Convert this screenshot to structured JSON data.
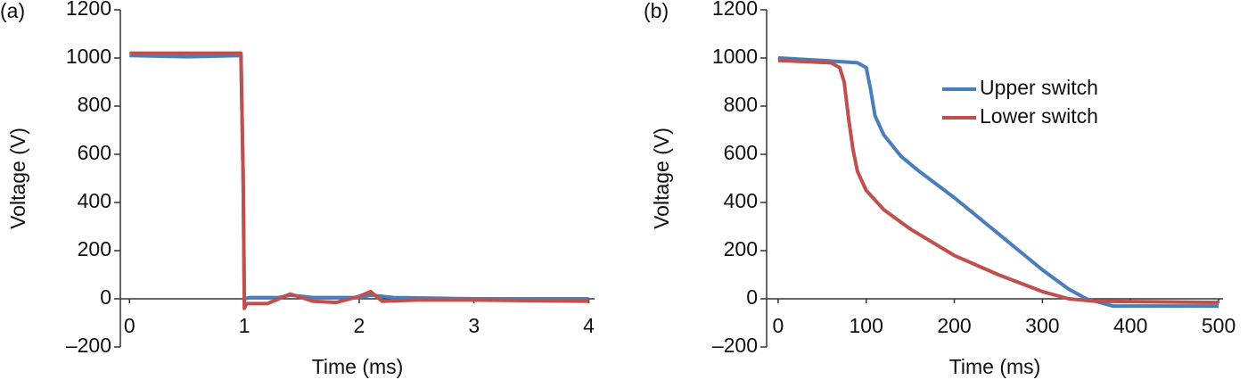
{
  "chart_data": [
    {
      "type": "line",
      "panel_label": "(a)",
      "xlabel": "Time (ms)",
      "ylabel": "Voltage (V)",
      "xlim": [
        -0.08,
        4.05
      ],
      "xticks": [
        0,
        1,
        2,
        3,
        4
      ],
      "ylim": [
        -200,
        1200
      ],
      "yticks": [
        {
          "value": -200,
          "label": "–200"
        },
        0,
        200,
        400,
        600,
        800,
        1000,
        1200
      ],
      "series": [
        {
          "color": "#4a7ebb",
          "x": [
            0,
            0.5,
            0.97,
            0.99,
            1.0,
            1.05,
            1.3,
            1.4,
            1.6,
            2.0,
            2.1,
            2.3,
            3,
            4
          ],
          "values": [
            1010,
            1005,
            1010,
            500,
            0,
            5,
            5,
            15,
            5,
            5,
            15,
            5,
            0,
            0
          ]
        },
        {
          "color": "#c0504d",
          "x": [
            0,
            0.5,
            0.97,
            0.99,
            1.0,
            1.02,
            1.2,
            1.3,
            1.4,
            1.6,
            1.8,
            2.0,
            2.1,
            2.2,
            2.5,
            3,
            4
          ],
          "values": [
            1020,
            1020,
            1020,
            500,
            -40,
            -20,
            -20,
            0,
            20,
            -10,
            -15,
            10,
            30,
            -10,
            -5,
            -5,
            -10
          ]
        }
      ]
    },
    {
      "type": "line",
      "panel_label": "(b)",
      "xlabel": "Time (ms)",
      "ylabel": "Voltage (V)",
      "xlim": [
        -13,
        505
      ],
      "xticks": [
        0,
        100,
        200,
        300,
        400,
        500
      ],
      "ylim": [
        -200,
        1200
      ],
      "yticks": [
        {
          "value": -200,
          "label": "–200"
        },
        0,
        200,
        400,
        600,
        800,
        1000,
        1200
      ],
      "legend": "upper right",
      "series": [
        {
          "name": "Upper switch",
          "color": "#4a7ebb",
          "x": [
            0,
            50,
            90,
            100,
            105,
            110,
            120,
            140,
            160,
            200,
            250,
            300,
            330,
            350,
            380,
            500
          ],
          "values": [
            1000,
            990,
            980,
            960,
            870,
            760,
            680,
            590,
            530,
            420,
            270,
            120,
            40,
            0,
            -30,
            -30
          ]
        },
        {
          "name": "Lower switch",
          "color": "#c0504d",
          "x": [
            0,
            60,
            70,
            75,
            80,
            85,
            90,
            100,
            120,
            150,
            200,
            250,
            300,
            330,
            360,
            500
          ],
          "values": [
            990,
            980,
            960,
            900,
            750,
            620,
            530,
            450,
            370,
            290,
            180,
            100,
            30,
            0,
            -10,
            -15
          ]
        }
      ]
    }
  ]
}
